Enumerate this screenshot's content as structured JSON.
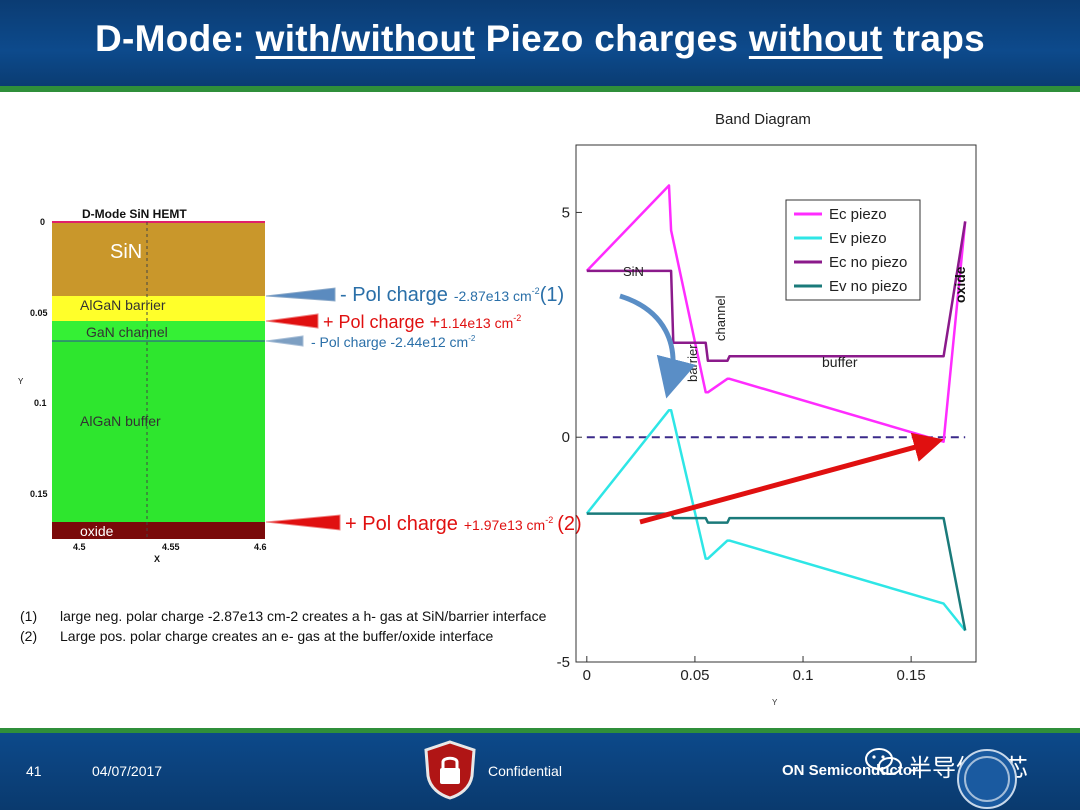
{
  "slide": {
    "title_prefix": "D-Mode: ",
    "title_u1": "with/without",
    "title_mid": " Piezo charges ",
    "title_u2": "without",
    "title_suffix": " traps"
  },
  "device": {
    "title": "D-Mode SiN HEMT",
    "layers": [
      "SiN",
      "AlGaN barrier",
      "GaN channel",
      "AlGaN buffer",
      "oxide"
    ],
    "y_axis_label": "Y",
    "x_axis_label": "X",
    "y_ticks": [
      "0",
      "0.05",
      "0.1",
      "0.15"
    ],
    "x_ticks": [
      "4.5",
      "4.55",
      "4.6"
    ]
  },
  "annotations": {
    "pol1_label": "- Pol charge",
    "pol1_value": "-2.87e13 cm",
    "pol1_exp": "-2",
    "pol1_tag": "(1)",
    "pol2_label": "+ Pol charge +",
    "pol2_value": "1.14e13 cm",
    "pol2_exp": "-2",
    "pol3_label": "- Pol charge -2.44e12 cm",
    "pol3_exp": "-2",
    "pol4_label": "+ Pol charge",
    "pol4_value": "+1.97e13 cm",
    "pol4_exp": "-2",
    "pol4_tag": "(2)"
  },
  "notes": [
    {
      "num": "(1)",
      "text": "large neg. polar charge -2.87e13 cm-2 creates a h- gas at SiN/barrier interface"
    },
    {
      "num": "(2)",
      "text": "Large pos. polar charge creates an e- gas at the buffer/oxide interface"
    }
  ],
  "chart_data": {
    "type": "line",
    "title": "Band Diagram",
    "xlabel": "Y",
    "ylabel": "",
    "xlim": [
      -0.005,
      0.18
    ],
    "ylim": [
      -5,
      6.5
    ],
    "x_ticks": [
      0,
      0.05,
      0.1,
      0.15
    ],
    "y_ticks": [
      -5,
      0,
      5
    ],
    "grid": false,
    "legend_position": "top-right",
    "region_labels": [
      "SiN",
      "barrier",
      "channel",
      "buffer",
      "oxide"
    ],
    "series": [
      {
        "name": "Ec piezo",
        "color": "#ff2cff",
        "x": [
          0,
          0.038,
          0.039,
          0.055,
          0.056,
          0.065,
          0.066,
          0.165,
          0.175
        ],
        "y": [
          3.7,
          5.6,
          4.6,
          1.0,
          1.0,
          1.3,
          1.3,
          -0.1,
          4.8
        ]
      },
      {
        "name": "Ev piezo",
        "color": "#2ee6e6",
        "x": [
          0,
          0.038,
          0.039,
          0.055,
          0.056,
          0.065,
          0.066,
          0.165,
          0.175
        ],
        "y": [
          -1.7,
          0.6,
          0.6,
          -2.7,
          -2.7,
          -2.3,
          -2.3,
          -3.7,
          -4.3
        ]
      },
      {
        "name": "Ec no piezo",
        "color": "#8b1a8b",
        "x": [
          0,
          0.039,
          0.04,
          0.055,
          0.056,
          0.065,
          0.066,
          0.165,
          0.175
        ],
        "y": [
          3.7,
          3.7,
          2.1,
          2.1,
          1.7,
          1.7,
          1.8,
          1.8,
          4.8
        ]
      },
      {
        "name": "Ev no piezo",
        "color": "#1a7a7a",
        "x": [
          0,
          0.039,
          0.04,
          0.055,
          0.056,
          0.065,
          0.066,
          0.165,
          0.175
        ],
        "y": [
          -1.7,
          -1.7,
          -1.8,
          -1.8,
          -1.9,
          -1.9,
          -1.8,
          -1.8,
          -4.3
        ]
      }
    ],
    "fermi_level": 0
  },
  "footer": {
    "page": "41",
    "date": "04/07/2017",
    "confidential": "Confidential",
    "company": "ON Semiconductor",
    "watermark": "半导体之芯"
  },
  "colors": {
    "sin": "#c9972b",
    "barrier": "#ffff2a",
    "channel": "#35f035",
    "buffer": "#2ee62e",
    "oxide": "#7a0a0a",
    "annot_blue": "#2a6fa8",
    "annot_red": "#e01010"
  }
}
